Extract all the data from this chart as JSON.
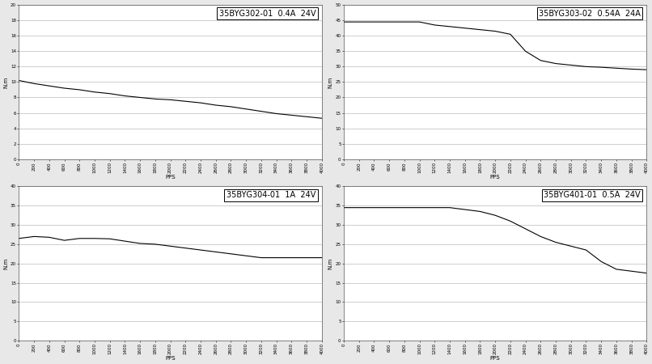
{
  "charts": [
    {
      "title": "35BYG302-01  0.4A  24V",
      "ylabel": "N.m",
      "xlabel": "PPS",
      "ylim": [
        0,
        20
      ],
      "yticks": [
        0,
        2,
        4,
        6,
        8,
        10,
        12,
        14,
        16,
        18,
        20
      ],
      "xlim": [
        0,
        4000
      ],
      "xticks": [
        0,
        200,
        400,
        600,
        800,
        1000,
        1200,
        1400,
        1600,
        1800,
        2000,
        2200,
        2400,
        2600,
        2800,
        3000,
        3200,
        3400,
        3600,
        3800,
        4000
      ],
      "curve_x": [
        0,
        200,
        400,
        600,
        800,
        1000,
        1200,
        1400,
        1600,
        1800,
        2000,
        2200,
        2400,
        2600,
        2800,
        3000,
        3200,
        3400,
        3600,
        3800,
        4000
      ],
      "curve_y": [
        10.2,
        9.8,
        9.5,
        9.2,
        9.0,
        8.7,
        8.5,
        8.2,
        8.0,
        7.8,
        7.7,
        7.5,
        7.3,
        7.0,
        6.8,
        6.5,
        6.2,
        5.9,
        5.7,
        5.5,
        5.3
      ]
    },
    {
      "title": "35BYG303-02  0.54A  24A",
      "ylabel": "N.m",
      "xlabel": "PPS",
      "ylim": [
        0,
        50
      ],
      "yticks": [
        0,
        5,
        10,
        15,
        20,
        25,
        30,
        35,
        40,
        45,
        50
      ],
      "xlim": [
        0,
        4000
      ],
      "xticks": [
        0,
        200,
        400,
        600,
        800,
        1000,
        1200,
        1400,
        1600,
        1800,
        2000,
        2200,
        2400,
        2600,
        2800,
        3000,
        3200,
        3400,
        3600,
        3800,
        4000
      ],
      "curve_x": [
        0,
        200,
        400,
        600,
        800,
        1000,
        1200,
        1400,
        1600,
        1800,
        2000,
        2200,
        2400,
        2600,
        2800,
        3000,
        3200,
        3400,
        3600,
        3800,
        4000
      ],
      "curve_y": [
        44.5,
        44.5,
        44.5,
        44.5,
        44.5,
        44.5,
        43.5,
        43.0,
        42.5,
        42.0,
        41.5,
        40.5,
        35.0,
        32.0,
        31.0,
        30.5,
        30.0,
        29.8,
        29.5,
        29.2,
        29.0
      ]
    },
    {
      "title": "35BYG304-01  1A  24V",
      "ylabel": "N.m",
      "xlabel": "PPS",
      "ylim": [
        0,
        40
      ],
      "yticks": [
        0,
        5,
        10,
        15,
        20,
        25,
        30,
        35,
        40
      ],
      "xlim": [
        0,
        4000
      ],
      "xticks": [
        0,
        200,
        400,
        600,
        800,
        1000,
        1200,
        1400,
        1600,
        1800,
        2000,
        2200,
        2400,
        2600,
        2800,
        3000,
        3200,
        3400,
        3600,
        3800,
        4000
      ],
      "curve_x": [
        0,
        200,
        400,
        600,
        800,
        1000,
        1200,
        1400,
        1600,
        1800,
        2000,
        2200,
        2400,
        2600,
        2800,
        3000,
        3200,
        3400,
        3600,
        3800,
        4000
      ],
      "curve_y": [
        26.5,
        27.0,
        26.8,
        26.0,
        26.5,
        26.5,
        26.4,
        25.8,
        25.2,
        25.0,
        24.5,
        24.0,
        23.5,
        23.0,
        22.5,
        22.0,
        21.5,
        21.5,
        21.5,
        21.5,
        21.5
      ]
    },
    {
      "title": "35BYG401-01  0.5A  24V",
      "ylabel": "N.m",
      "xlabel": "PPS",
      "ylim": [
        0,
        40
      ],
      "yticks": [
        0,
        5,
        10,
        15,
        20,
        25,
        30,
        35,
        40
      ],
      "xlim": [
        0,
        4000
      ],
      "xticks": [
        0,
        200,
        400,
        600,
        800,
        1000,
        1200,
        1400,
        1600,
        1800,
        2000,
        2200,
        2400,
        2600,
        2800,
        3000,
        3200,
        3400,
        3600,
        3800,
        4000
      ],
      "curve_x": [
        0,
        200,
        400,
        600,
        800,
        1000,
        1200,
        1400,
        1600,
        1800,
        2000,
        2200,
        2400,
        2600,
        2800,
        3000,
        3200,
        3400,
        3600,
        3800,
        4000
      ],
      "curve_y": [
        34.5,
        34.5,
        34.5,
        34.5,
        34.5,
        34.5,
        34.5,
        34.5,
        34.0,
        33.5,
        32.5,
        31.0,
        29.0,
        27.0,
        25.5,
        24.5,
        23.5,
        20.5,
        18.5,
        18.0,
        17.5
      ]
    }
  ],
  "bg_color": "#e8e8e8",
  "plot_bg": "#ffffff",
  "line_color": "#000000",
  "grid_color": "#000000",
  "label_fontsize": 5,
  "tick_fontsize": 4,
  "title_fontsize": 7,
  "line_width": 0.8
}
